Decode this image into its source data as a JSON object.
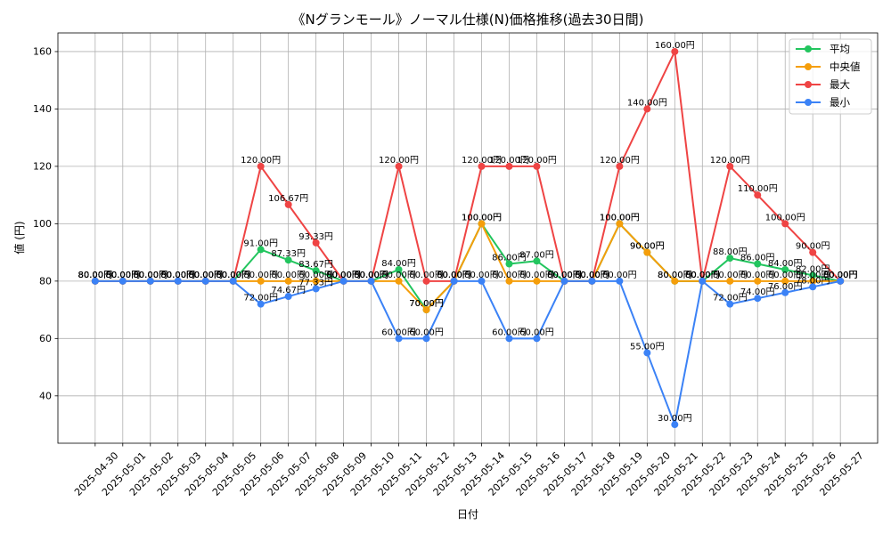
{
  "chart_data": {
    "type": "line",
    "title": "《Nグランモール》ノーマル仕様(N)価格推移(過去30日間)",
    "xlabel": "日付",
    "ylabel": "値 (円)",
    "categories": [
      "2025-04-30",
      "2025-05-01",
      "2025-05-02",
      "2025-05-03",
      "2025-05-04",
      "2025-05-05",
      "2025-05-06",
      "2025-05-07",
      "2025-05-08",
      "2025-05-09",
      "2025-05-10",
      "2025-05-11",
      "2025-05-12",
      "2025-05-13",
      "2025-05-14",
      "2025-05-15",
      "2025-05-16",
      "2025-05-17",
      "2025-05-18",
      "2025-05-19",
      "2025-05-20",
      "2025-05-21",
      "2025-05-22",
      "2025-05-23",
      "2025-05-24",
      "2025-05-25",
      "2025-05-26",
      "2025-05-27"
    ],
    "yticks": [
      40,
      60,
      80,
      100,
      120,
      140,
      160
    ],
    "ylim": [
      23.5,
      166.5
    ],
    "grid": true,
    "legend_position": "top-right",
    "series": [
      {
        "name": "平均",
        "color": "#22c55e",
        "values": [
          80,
          80,
          80,
          80,
          80,
          80,
          91,
          87.33,
          83.67,
          80,
          80,
          84,
          70,
          80,
          100,
          86,
          87,
          80,
          80,
          100,
          90,
          80,
          80,
          88,
          86,
          84,
          82,
          80
        ],
        "data_labels": [
          "80.00円",
          "80.00円",
          "80.00円",
          "80.00円",
          "80.00円",
          "80.00円",
          "91.00円",
          "87.33円",
          "83.67円",
          "80.00円",
          "80.00円",
          "84.00円",
          "70.00円",
          "80.00円",
          "100.00円",
          "86.00円",
          "87.00円",
          "80.00円",
          "80.00円",
          "100.00円",
          "90.00円",
          "80.00円",
          "80.00円",
          "88.00円",
          "86.00円",
          "84.00円",
          "82.00円",
          "80.00円"
        ]
      },
      {
        "name": "中央値",
        "color": "#f59e0b",
        "values": [
          80,
          80,
          80,
          80,
          80,
          80,
          80,
          80,
          80,
          80,
          80,
          80,
          70,
          80,
          100,
          80,
          80,
          80,
          80,
          100,
          90,
          80,
          80,
          80,
          80,
          80,
          80,
          80
        ],
        "data_labels": [
          "80.00円",
          "80.00円",
          "80.00円",
          "80.00円",
          "80.00円",
          "80.00円",
          "80.00円",
          "80.00円",
          "80.00円",
          "80.00円",
          "80.00円",
          "80.00円",
          "70.00円",
          "80.00円",
          "100.00円",
          "80.00円",
          "80.00円",
          "80.00円",
          "80.00円",
          "100.00円",
          "90.00円",
          "80.00円",
          "80.00円",
          "80.00円",
          "80.00円",
          "80.00円",
          "80.00円",
          "80.00円"
        ]
      },
      {
        "name": "最大",
        "color": "#ef4444",
        "values": [
          80,
          80,
          80,
          80,
          80,
          80,
          120,
          106.67,
          93.33,
          80,
          80,
          120,
          80,
          80,
          120,
          120,
          120,
          80,
          80,
          120,
          140,
          160,
          80,
          120,
          110,
          100,
          90,
          80
        ],
        "data_labels": [
          "80.00円",
          "80.00円",
          "80.00円",
          "80.00円",
          "80.00円",
          "80.00円",
          "120.00円",
          "106.67円",
          "93.33円",
          "80.00円",
          "80.00円",
          "120.00円",
          "80.00円",
          "80.00円",
          "120.00円",
          "120.00円",
          "120.00円",
          "80.00円",
          "80.00円",
          "120.00円",
          "140.00円",
          "160.00円",
          "80.00円",
          "120.00円",
          "110.00円",
          "100.00円",
          "90.00円",
          "80.00円"
        ]
      },
      {
        "name": "最小",
        "color": "#3b82f6",
        "values": [
          80,
          80,
          80,
          80,
          80,
          80,
          72,
          74.67,
          77.33,
          80,
          80,
          60,
          60,
          80,
          80,
          60,
          60,
          80,
          80,
          80,
          55,
          30,
          80,
          72,
          74,
          76,
          78,
          80
        ],
        "data_labels": [
          "80.00円",
          "80.00円",
          "80.00円",
          "80.00円",
          "80.00円",
          "80.00円",
          "72.00円",
          "74.67円",
          "77.33円",
          "80.00円",
          "80.00円",
          "60.00円",
          "60.00円",
          "80.00円",
          "80.00円",
          "60.00円",
          "60.00円",
          "80.00円",
          "80.00円",
          "80.00円",
          "55.00円",
          "30.00円",
          "80.00円",
          "72.00円",
          "74.00円",
          "76.00円",
          "78.00円",
          "80.00円"
        ]
      }
    ]
  }
}
